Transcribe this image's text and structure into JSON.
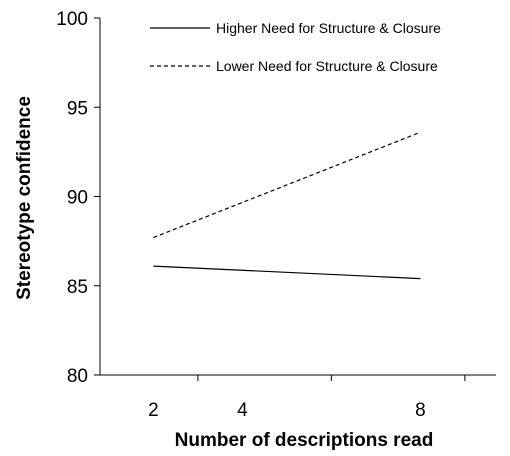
{
  "chart_data": {
    "type": "line",
    "title": "",
    "xlabel": "Number of descriptions read",
    "ylabel": "Stereotype confidence",
    "x_ticks": [
      2,
      4,
      8
    ],
    "y_ticks": [
      80,
      85,
      90,
      95,
      100
    ],
    "xlim": [
      0.8,
      9.7
    ],
    "ylim": [
      80,
      100
    ],
    "grid": false,
    "legend_position": "top-right",
    "series": [
      {
        "name": "Higher Need for Structure & Closure",
        "line_style": "solid",
        "x": [
          2,
          8
        ],
        "y": [
          86.1,
          85.4
        ]
      },
      {
        "name": "Lower Need for Structure & Closure",
        "line_style": "dashed",
        "x": [
          2,
          8
        ],
        "y": [
          87.7,
          93.6
        ]
      }
    ]
  }
}
